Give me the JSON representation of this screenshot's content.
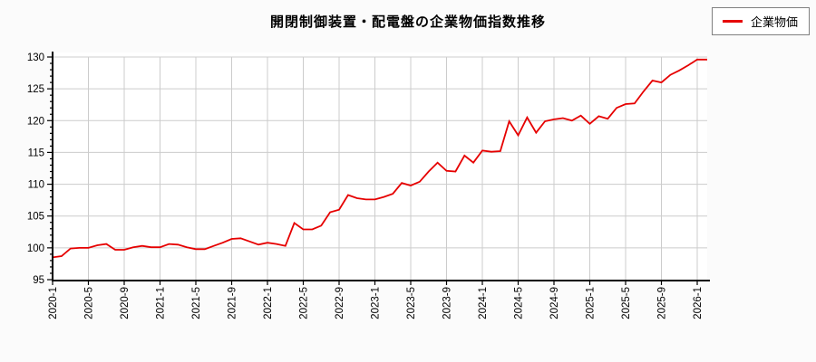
{
  "page": {
    "background": "#fbfbfb",
    "plot_background": "#ffffff"
  },
  "header": {
    "title": "開閉制御装置・配電盤の企業物価指数推移"
  },
  "legend": {
    "label": "企業物価",
    "line_color": "#e60000",
    "position": "top-right"
  },
  "chart_data": {
    "type": "line",
    "title": "開閉制御装置・配電盤の企業物価指数推移",
    "grid": true,
    "grid_color": "#cccccc",
    "axis_color": "#000000",
    "ylim": [
      95,
      130
    ],
    "yticks": [
      95,
      100,
      105,
      110,
      115,
      120,
      125,
      130
    ],
    "x_tick_labels": [
      "2020-1",
      "2020-5",
      "2020-9",
      "2021-1",
      "2021-5",
      "2021-9",
      "2022-1",
      "2022-5",
      "2022-9",
      "2023-1",
      "2023-5",
      "2023-9",
      "2024-1",
      "2024-5",
      "2024-9",
      "2025-1",
      "2025-5",
      "2025-9",
      "2026-1"
    ],
    "x": [
      "2020-1",
      "2020-2",
      "2020-3",
      "2020-4",
      "2020-5",
      "2020-6",
      "2020-7",
      "2020-8",
      "2020-9",
      "2020-10",
      "2020-11",
      "2020-12",
      "2021-1",
      "2021-2",
      "2021-3",
      "2021-4",
      "2021-5",
      "2021-6",
      "2021-7",
      "2021-8",
      "2021-9",
      "2021-10",
      "2021-11",
      "2021-12",
      "2022-1",
      "2022-2",
      "2022-3",
      "2022-4",
      "2022-5",
      "2022-6",
      "2022-7",
      "2022-8",
      "2022-9",
      "2022-10",
      "2022-11",
      "2022-12",
      "2023-1",
      "2023-2",
      "2023-3",
      "2023-4",
      "2023-5",
      "2023-6",
      "2023-7",
      "2023-8",
      "2023-9",
      "2023-10",
      "2023-11",
      "2023-12",
      "2024-1",
      "2024-2",
      "2024-3",
      "2024-4",
      "2024-5",
      "2024-6",
      "2024-7",
      "2024-8",
      "2024-9",
      "2024-10",
      "2024-11",
      "2024-12",
      "2025-1",
      "2025-2",
      "2025-3",
      "2025-4",
      "2025-5",
      "2025-6",
      "2025-7",
      "2025-8",
      "2025-9",
      "2025-10",
      "2025-11",
      "2025-12",
      "2026-1"
    ],
    "series": [
      {
        "name": "企業物価",
        "color": "#e60000",
        "values": [
          98.5,
          98.7,
          99.9,
          100.0,
          100.0,
          100.4,
          100.6,
          99.7,
          99.7,
          100.1,
          100.3,
          100.1,
          100.1,
          100.6,
          100.5,
          100.1,
          99.8,
          99.8,
          100.3,
          100.8,
          101.4,
          101.5,
          101.0,
          100.5,
          100.8,
          100.6,
          100.3,
          103.9,
          102.9,
          102.9,
          103.5,
          105.6,
          106.0,
          108.3,
          107.8,
          107.6,
          107.6,
          108.0,
          108.5,
          110.2,
          109.8,
          110.4,
          112.0,
          113.4,
          112.1,
          112.0,
          114.5,
          113.4,
          115.3,
          115.1,
          115.2,
          119.9,
          117.7,
          120.5,
          118.1,
          119.9,
          120.2,
          120.4,
          120.0,
          120.8,
          119.5,
          120.7,
          120.3,
          122.0,
          122.6,
          122.7,
          124.6,
          126.3,
          126.0,
          127.2,
          127.9,
          128.7,
          129.6
        ]
      }
    ],
    "legend_position": "top-right"
  }
}
